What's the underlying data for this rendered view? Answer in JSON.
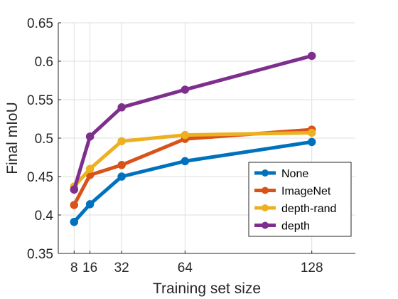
{
  "chart_data": {
    "type": "line",
    "xlabel": "Training set size",
    "ylabel": "Final mIoU",
    "x": [
      8,
      16,
      32,
      64,
      128
    ],
    "xticks": [
      8,
      16,
      32,
      64,
      128
    ],
    "xtick_labels": [
      "8",
      "16",
      "32",
      "64",
      "128"
    ],
    "xlim": [
      0,
      150
    ],
    "ylim": [
      0.35,
      0.65
    ],
    "yticks": [
      0.35,
      0.4,
      0.45,
      0.5,
      0.55,
      0.6,
      0.65
    ],
    "ytick_labels": [
      "0.35",
      "0.4",
      "0.45",
      "0.5",
      "0.55",
      "0.6",
      "0.65"
    ],
    "grid": true,
    "legend_position": "bottom-right",
    "series": [
      {
        "name": "None",
        "color": "#0072BD",
        "values": [
          0.391,
          0.414,
          0.45,
          0.47,
          0.495
        ]
      },
      {
        "name": "ImageNet",
        "color": "#D95319",
        "values": [
          0.413,
          0.452,
          0.465,
          0.499,
          0.511
        ]
      },
      {
        "name": "depth-rand",
        "color": "#EDB120",
        "values": [
          0.437,
          0.46,
          0.496,
          0.504,
          0.507
        ]
      },
      {
        "name": "depth",
        "color": "#7E2F8E",
        "values": [
          0.433,
          0.502,
          0.54,
          0.563,
          0.607
        ]
      }
    ]
  }
}
